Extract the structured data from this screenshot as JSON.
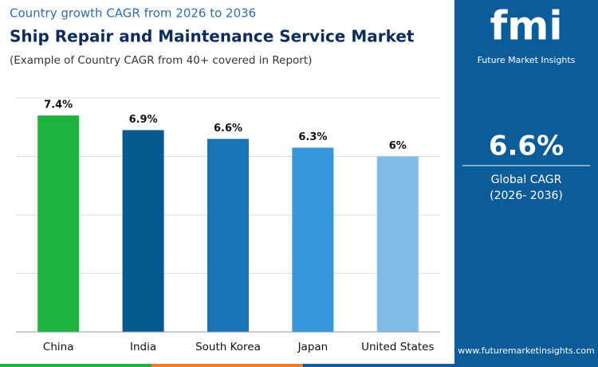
{
  "chart_data": {
    "type": "bar",
    "kicker": "Country growth CAGR from 2026 to 2036",
    "title": "Ship Repair and Maintenance Service Market",
    "subtitle": "(Example of Country CAGR from 40+ covered in Report)",
    "categories": [
      "China",
      "India",
      "South Korea",
      "Japan",
      "United States"
    ],
    "values": [
      7.4,
      6.9,
      6.6,
      6.3,
      6
    ],
    "value_labels": [
      "7.4%",
      "6.9%",
      "6.6%",
      "6.3%",
      "6%"
    ],
    "colors": [
      "#1db33c",
      "#065a92",
      "#1a73b4",
      "#3797db",
      "#7fbce6"
    ],
    "ylim": [
      0,
      8
    ],
    "yticks": [
      0,
      2,
      4,
      6,
      8
    ],
    "grid": true
  },
  "sidebar": {
    "logo": "fmi",
    "brand": "Future Market Insights",
    "stat": "6.6%",
    "stat_label": "Global CAGR",
    "period": "(2026- 2036)",
    "url": "www.futuremarketinsights.com"
  }
}
